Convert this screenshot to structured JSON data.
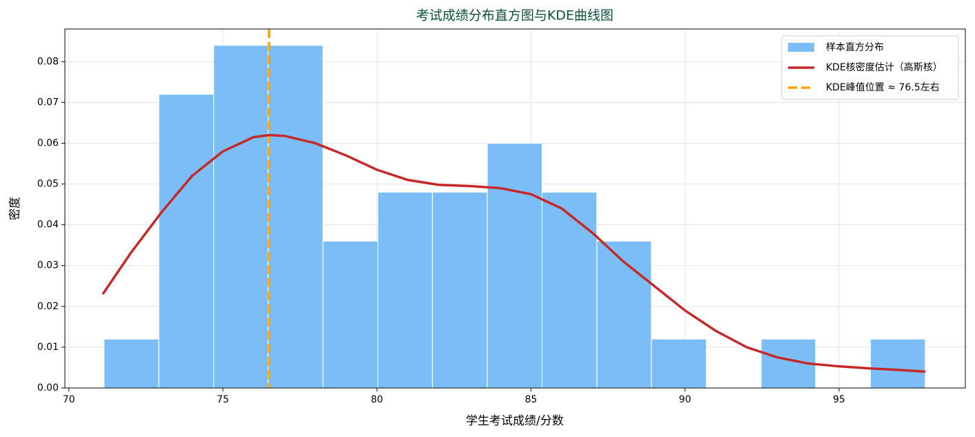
{
  "chart_data": {
    "type": "histogram",
    "title": "考试成绩分布直方图与KDE曲线图",
    "xlabel": "学生考试成绩/分数",
    "ylabel": "密度",
    "bins": [
      71.14,
      72.92,
      74.7,
      76.47,
      78.25,
      80.03,
      81.8,
      83.58,
      85.36,
      87.14,
      88.91,
      90.69,
      92.47,
      94.24,
      96.02,
      97.8
    ],
    "counts": [
      0.012,
      0.072,
      0.084,
      0.084,
      0.036,
      0.048,
      0.048,
      0.06,
      0.048,
      0.036,
      0.012,
      0,
      0.012,
      0,
      0.012
    ],
    "name": "样本直方分布",
    "color": "#7bbef7",
    "kde": {
      "name": "KDE核密度估计（高斯核）",
      "color": "#c62828",
      "x": [
        71.1,
        72,
        73,
        74,
        75,
        76,
        76.5,
        77,
        78,
        79,
        80,
        81,
        82,
        83,
        84,
        85,
        86,
        87,
        88,
        89,
        90,
        91,
        92,
        93,
        94,
        95,
        96,
        97,
        97.8
      ],
      "values": [
        0.023,
        0.033,
        0.043,
        0.052,
        0.058,
        0.0615,
        0.062,
        0.0618,
        0.06,
        0.057,
        0.0535,
        0.051,
        0.0498,
        0.0495,
        0.049,
        0.0475,
        0.044,
        0.038,
        0.031,
        0.025,
        0.019,
        0.014,
        0.01,
        0.0075,
        0.006,
        0.0053,
        0.0048,
        0.0044,
        0.004
      ]
    },
    "mode_line": {
      "name": "KDE峰值位置 ≈ 76.5左右",
      "color": "#ffa000",
      "value": 76.5
    },
    "xlim": [
      69.87,
      99.1
    ],
    "ylim": [
      0,
      0.088
    ],
    "xticks": [
      70,
      75,
      80,
      85,
      90,
      95
    ],
    "yticks": [
      {
        "value": 0,
        "label": "0.00"
      },
      {
        "value": 0.01,
        "label": "0.01"
      },
      {
        "value": 0.02,
        "label": "0.02"
      },
      {
        "value": 0.03,
        "label": "0.03"
      },
      {
        "value": 0.04,
        "label": "0.04"
      },
      {
        "value": 0.05,
        "label": "0.05"
      },
      {
        "value": 0.06,
        "label": "0.06"
      },
      {
        "value": 0.07,
        "label": "0.07"
      },
      {
        "value": 0.08,
        "label": "0.08"
      }
    ],
    "grid": true,
    "legend": "upper-right"
  }
}
